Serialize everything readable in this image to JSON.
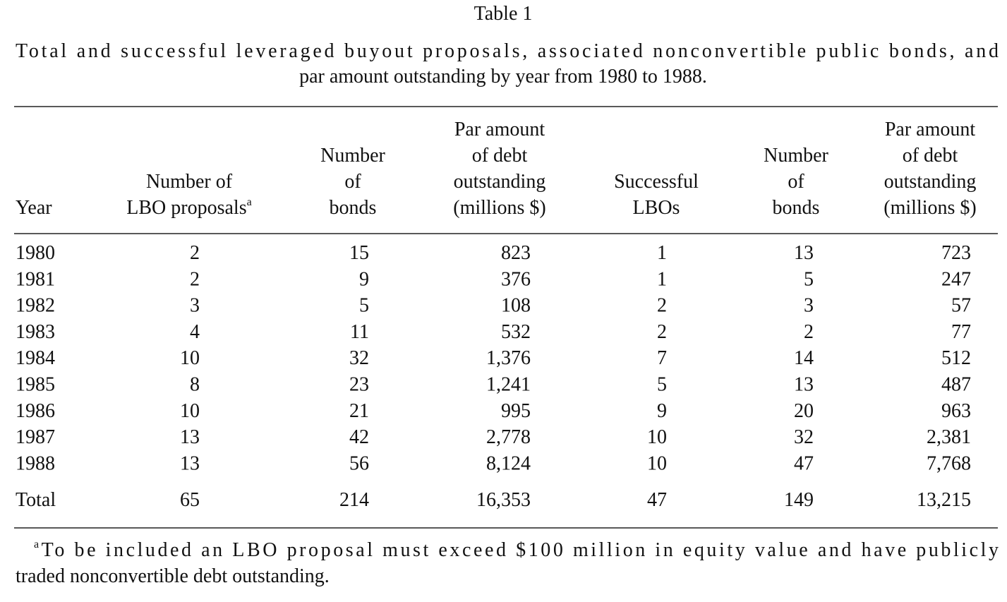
{
  "title": "Table 1",
  "caption": [
    "Total and successful leveraged buyout proposals, associated nonconvertible public bonds, and",
    "par amount outstanding by year from 1980 to 1988."
  ],
  "table": {
    "columns": [
      {
        "lines": [
          "Year"
        ]
      },
      {
        "lines": [
          "Number of",
          "LBO proposals"
        ],
        "superscript": "a"
      },
      {
        "lines": [
          "Number",
          "of",
          "bonds"
        ]
      },
      {
        "lines": [
          "Par amount",
          "of debt",
          "outstanding",
          "(millions $)"
        ]
      },
      {
        "lines": [
          "Successful",
          "LBOs"
        ]
      },
      {
        "lines": [
          "Number",
          "of",
          "bonds"
        ]
      },
      {
        "lines": [
          "Par amount",
          "of debt",
          "outstanding",
          "(millions $)"
        ]
      }
    ],
    "rows": [
      [
        "1980",
        "2",
        "15",
        "823",
        "1",
        "13",
        "723"
      ],
      [
        "1981",
        "2",
        "9",
        "376",
        "1",
        "5",
        "247"
      ],
      [
        "1982",
        "3",
        "5",
        "108",
        "2",
        "3",
        "57"
      ],
      [
        "1983",
        "4",
        "11",
        "532",
        "2",
        "2",
        "77"
      ],
      [
        "1984",
        "10",
        "32",
        "1,376",
        "7",
        "14",
        "512"
      ],
      [
        "1985",
        "8",
        "23",
        "1,241",
        "5",
        "13",
        "487"
      ],
      [
        "1986",
        "10",
        "21",
        "995",
        "9",
        "20",
        "963"
      ],
      [
        "1987",
        "13",
        "42",
        "2,778",
        "10",
        "32",
        "2,381"
      ],
      [
        "1988",
        "13",
        "56",
        "8,124",
        "10",
        "47",
        "7,768"
      ]
    ],
    "total": [
      "Total",
      "65",
      "214",
      "16,353",
      "47",
      "149",
      "13,215"
    ]
  },
  "footnote": {
    "marker": "a",
    "lines": [
      "To be included an LBO proposal must exceed $100 million in equity value and have publicly",
      "traded nonconvertible debt outstanding."
    ]
  }
}
